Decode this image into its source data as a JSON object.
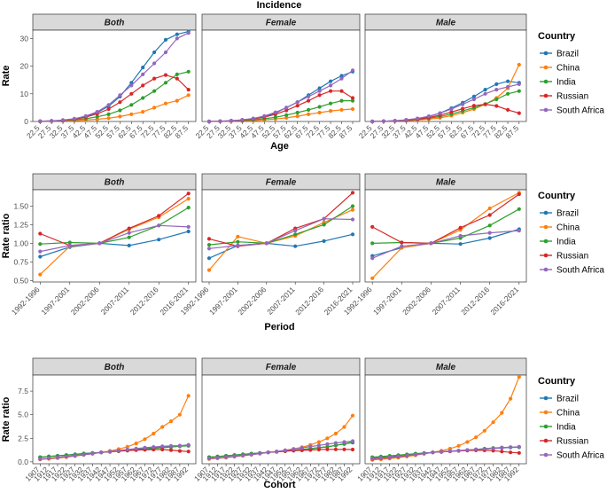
{
  "chart_data": [
    {
      "type": "line",
      "title": "Incidence",
      "xlabel": "Age",
      "ylabel": "Rate",
      "ylim": [
        0,
        33
      ],
      "yticks": [
        0,
        10,
        20,
        30
      ],
      "categories": [
        "22.5",
        "27.5",
        "32.5",
        "37.5",
        "42.5",
        "47.5",
        "52.5",
        "57.5",
        "62.5",
        "67.5",
        "72.5",
        "77.5",
        "82.5",
        "87.5"
      ],
      "panels": [
        {
          "name": "Both",
          "series": [
            {
              "name": "Brazil",
              "values": [
                0.1,
                0.2,
                0.4,
                0.9,
                1.8,
                3.2,
                5.5,
                9,
                14,
                19.5,
                25,
                29.5,
                31.5,
                32.5
              ]
            },
            {
              "name": "China",
              "values": [
                0,
                0.1,
                0.2,
                0.3,
                0.5,
                0.8,
                1.2,
                1.8,
                2.6,
                3.5,
                5,
                6.5,
                7.5,
                9.5
              ]
            },
            {
              "name": "India",
              "values": [
                0,
                0.1,
                0.3,
                0.6,
                1,
                1.7,
                2.6,
                4,
                6,
                8.5,
                11,
                14,
                17,
                18
              ]
            },
            {
              "name": "Russian",
              "values": [
                0.1,
                0.2,
                0.4,
                0.8,
                1.6,
                2.8,
                4.5,
                7,
                10,
                13,
                15.5,
                16.8,
                15.5,
                11.5
              ]
            },
            {
              "name": "South Africa",
              "values": [
                0.1,
                0.2,
                0.5,
                1,
                2,
                3.5,
                6,
                9.5,
                13,
                17,
                21,
                25,
                30,
                32
              ]
            }
          ]
        },
        {
          "name": "Female",
          "series": [
            {
              "name": "Brazil",
              "values": [
                0,
                0.1,
                0.3,
                0.5,
                1,
                1.8,
                3,
                5,
                7,
                9.5,
                12,
                14.5,
                16.5,
                18
              ]
            },
            {
              "name": "China",
              "values": [
                0,
                0.1,
                0.1,
                0.2,
                0.3,
                0.6,
                0.9,
                1.3,
                1.9,
                2.6,
                3.2,
                3.8,
                4.2,
                4.5
              ]
            },
            {
              "name": "India",
              "values": [
                0,
                0.1,
                0.2,
                0.3,
                0.6,
                1,
                1.5,
                2.3,
                3.2,
                4.2,
                5.3,
                6.5,
                7.5,
                7.5
              ]
            },
            {
              "name": "Russian",
              "values": [
                0,
                0.1,
                0.2,
                0.4,
                0.9,
                1.6,
                2.6,
                4,
                5.7,
                7.5,
                9.5,
                11,
                11,
                8.5
              ]
            },
            {
              "name": "South Africa",
              "values": [
                0,
                0.1,
                0.3,
                0.6,
                1.1,
                2,
                3.3,
                5,
                7,
                9,
                11,
                13,
                15.5,
                18.5
              ]
            }
          ]
        },
        {
          "name": "Male",
          "series": [
            {
              "name": "Brazil",
              "values": [
                0,
                0.1,
                0.2,
                0.5,
                1,
                1.8,
                3,
                4.8,
                6.8,
                9,
                11.5,
                13.5,
                14.5,
                14
              ]
            },
            {
              "name": "China",
              "values": [
                0,
                0.1,
                0.2,
                0.3,
                0.5,
                0.8,
                1.3,
                2.1,
                3.2,
                4.5,
                6.2,
                8.5,
                12,
                20.5
              ]
            },
            {
              "name": "India",
              "values": [
                0,
                0.1,
                0.2,
                0.4,
                0.7,
                1.2,
                1.8,
                2.7,
                3.8,
                5,
                6.3,
                8,
                10,
                11
              ]
            },
            {
              "name": "Russian",
              "values": [
                0,
                0.1,
                0.2,
                0.4,
                0.8,
                1.4,
                2.3,
                3.4,
                4.6,
                5.7,
                6.2,
                5.6,
                4.2,
                3
              ]
            },
            {
              "name": "South Africa",
              "values": [
                0,
                0.1,
                0.3,
                0.6,
                1.1,
                1.9,
                3,
                4.5,
                6.2,
                8,
                10,
                11.5,
                12.5,
                13.5
              ]
            }
          ]
        }
      ]
    },
    {
      "type": "line",
      "xlabel": "Period",
      "ylabel": "Rate ratio",
      "ylim": [
        0.48,
        1.72
      ],
      "yticks": [
        0.5,
        0.75,
        1.0,
        1.25,
        1.5
      ],
      "ytick_labels": [
        "0.50",
        "0.75",
        "1.00",
        "1.25",
        "1.50"
      ],
      "categories": [
        "1992-1996",
        "1997-2001",
        "2002-2006",
        "2007-2011",
        "2012-2016",
        "2016-2021"
      ],
      "panels": [
        {
          "name": "Both",
          "series": [
            {
              "name": "Brazil",
              "values": [
                0.82,
                0.95,
                1,
                0.97,
                1.05,
                1.16
              ]
            },
            {
              "name": "China",
              "values": [
                0.58,
                0.96,
                1,
                1.19,
                1.35,
                1.6
              ]
            },
            {
              "name": "India",
              "values": [
                0.99,
                1.01,
                1,
                1.08,
                1.24,
                1.48
              ]
            },
            {
              "name": "Russian",
              "values": [
                1.13,
                0.97,
                1,
                1.2,
                1.37,
                1.67
              ]
            },
            {
              "name": "South Africa",
              "values": [
                0.89,
                0.97,
                1,
                1.14,
                1.24,
                1.22
              ]
            }
          ]
        },
        {
          "name": "Female",
          "series": [
            {
              "name": "Brazil",
              "values": [
                0.8,
                0.97,
                1,
                0.96,
                1.03,
                1.12
              ]
            },
            {
              "name": "China",
              "values": [
                0.64,
                1.09,
                1,
                1.1,
                1.28,
                1.45
              ]
            },
            {
              "name": "India",
              "values": [
                0.98,
                1.02,
                1,
                1.12,
                1.25,
                1.5
              ]
            },
            {
              "name": "Russian",
              "values": [
                1.06,
                0.96,
                1,
                1.2,
                1.33,
                1.68
              ]
            },
            {
              "name": "South Africa",
              "values": [
                0.93,
                0.97,
                1,
                1.17,
                1.33,
                1.32
              ]
            }
          ]
        },
        {
          "name": "Male",
          "series": [
            {
              "name": "Brazil",
              "values": [
                0.83,
                0.94,
                1,
                0.99,
                1.07,
                1.19
              ]
            },
            {
              "name": "China",
              "values": [
                0.53,
                0.94,
                1,
                1.18,
                1.47,
                1.68
              ]
            },
            {
              "name": "India",
              "values": [
                1,
                1.01,
                1,
                1.07,
                1.24,
                1.46
              ]
            },
            {
              "name": "Russian",
              "values": [
                1.22,
                1.01,
                1,
                1.21,
                1.38,
                1.66
              ]
            },
            {
              "name": "South Africa",
              "values": [
                0.8,
                0.96,
                1,
                1.1,
                1.14,
                1.17
              ]
            }
          ]
        }
      ]
    },
    {
      "type": "line",
      "xlabel": "Cohort",
      "ylabel": "Rate ratio",
      "ylim": [
        -0.2,
        9.2
      ],
      "yticks": [
        0,
        2.5,
        5.0,
        7.5
      ],
      "ytick_labels": [
        "0.0",
        "2.5",
        "5.0",
        "7.5"
      ],
      "categories": [
        "1907",
        "1912",
        "1917",
        "1922",
        "1927",
        "1932",
        "1937",
        "1942",
        "1947",
        "1952",
        "1957",
        "1962",
        "1967",
        "1972",
        "1977",
        "1982",
        "1987",
        "1992"
      ],
      "panels": [
        {
          "name": "Both",
          "series": [
            {
              "name": "Brazil",
              "values": [
                0.5,
                0.58,
                0.65,
                0.72,
                0.8,
                0.88,
                0.95,
                1,
                1.08,
                1.15,
                1.25,
                1.33,
                1.4,
                1.47,
                1.55,
                1.6,
                1.67,
                1.75
              ]
            },
            {
              "name": "China",
              "values": [
                0.25,
                0.32,
                0.4,
                0.5,
                0.62,
                0.75,
                0.88,
                1,
                1.15,
                1.35,
                1.6,
                1.95,
                2.4,
                3.0,
                3.7,
                4.3,
                5.0,
                7.0
              ]
            },
            {
              "name": "India",
              "values": [
                0.5,
                0.57,
                0.63,
                0.7,
                0.78,
                0.86,
                0.93,
                1,
                1.06,
                1.13,
                1.2,
                1.28,
                1.35,
                1.42,
                1.5,
                1.58,
                1.65,
                1.7
              ]
            },
            {
              "name": "Russian",
              "values": [
                0.3,
                0.38,
                0.46,
                0.55,
                0.65,
                0.75,
                0.87,
                1,
                1.08,
                1.15,
                1.2,
                1.25,
                1.28,
                1.3,
                1.3,
                1.25,
                1.15,
                1.1
              ]
            },
            {
              "name": "South Africa",
              "values": [
                0.3,
                0.38,
                0.46,
                0.55,
                0.65,
                0.76,
                0.88,
                1,
                1.1,
                1.2,
                1.3,
                1.4,
                1.5,
                1.58,
                1.65,
                1.7,
                1.72,
                1.8
              ]
            }
          ]
        },
        {
          "name": "Female",
          "series": [
            {
              "name": "Brazil",
              "values": [
                0.5,
                0.57,
                0.64,
                0.72,
                0.8,
                0.87,
                0.94,
                1,
                1.07,
                1.14,
                1.22,
                1.3,
                1.4,
                1.5,
                1.6,
                1.75,
                1.9,
                2.05
              ]
            },
            {
              "name": "China",
              "values": [
                0.3,
                0.37,
                0.45,
                0.55,
                0.65,
                0.76,
                0.88,
                1,
                1.1,
                1.22,
                1.38,
                1.55,
                1.8,
                2.1,
                2.5,
                3.0,
                3.7,
                4.9
              ]
            },
            {
              "name": "India",
              "values": [
                0.5,
                0.57,
                0.64,
                0.71,
                0.79,
                0.86,
                0.93,
                1,
                1.07,
                1.14,
                1.22,
                1.3,
                1.4,
                1.5,
                1.6,
                1.75,
                1.9,
                2.1
              ]
            },
            {
              "name": "Russian",
              "values": [
                0.35,
                0.42,
                0.5,
                0.58,
                0.67,
                0.77,
                0.88,
                1,
                1.07,
                1.13,
                1.18,
                1.22,
                1.26,
                1.3,
                1.32,
                1.32,
                1.32,
                1.3
              ]
            },
            {
              "name": "South Africa",
              "values": [
                0.35,
                0.42,
                0.5,
                0.58,
                0.67,
                0.77,
                0.88,
                1,
                1.1,
                1.22,
                1.35,
                1.48,
                1.62,
                1.75,
                1.88,
                2.0,
                2.1,
                2.2
              ]
            }
          ]
        },
        {
          "name": "Male",
          "series": [
            {
              "name": "Brazil",
              "values": [
                0.45,
                0.52,
                0.6,
                0.68,
                0.77,
                0.86,
                0.93,
                1,
                1.06,
                1.12,
                1.18,
                1.24,
                1.3,
                1.36,
                1.42,
                1.48,
                1.52,
                1.55
              ]
            },
            {
              "name": "China",
              "values": [
                0.2,
                0.27,
                0.35,
                0.45,
                0.57,
                0.7,
                0.85,
                1,
                1.18,
                1.4,
                1.7,
                2.1,
                2.6,
                3.3,
                4.2,
                5.2,
                6.7,
                9.0
              ]
            },
            {
              "name": "India",
              "values": [
                0.5,
                0.57,
                0.64,
                0.71,
                0.79,
                0.86,
                0.93,
                1,
                1.06,
                1.12,
                1.18,
                1.25,
                1.32,
                1.4,
                1.47,
                1.52,
                1.55,
                1.58
              ]
            },
            {
              "name": "Russian",
              "values": [
                0.3,
                0.38,
                0.46,
                0.55,
                0.65,
                0.76,
                0.88,
                1,
                1.07,
                1.12,
                1.16,
                1.2,
                1.22,
                1.22,
                1.18,
                1.1,
                1.0,
                0.95
              ]
            },
            {
              "name": "South Africa",
              "values": [
                0.35,
                0.42,
                0.5,
                0.58,
                0.67,
                0.77,
                0.88,
                1,
                1.07,
                1.14,
                1.2,
                1.26,
                1.32,
                1.38,
                1.44,
                1.5,
                1.55,
                1.6
              ]
            }
          ]
        }
      ]
    }
  ],
  "legend": {
    "title": "Country",
    "entries": [
      {
        "name": "Brazil",
        "color": "#1f77b4"
      },
      {
        "name": "China",
        "color": "#ff7f0e"
      },
      {
        "name": "India",
        "color": "#2ca02c"
      },
      {
        "name": "Russian",
        "color": "#d62728"
      },
      {
        "name": "South Africa",
        "color": "#9467bd"
      }
    ]
  }
}
